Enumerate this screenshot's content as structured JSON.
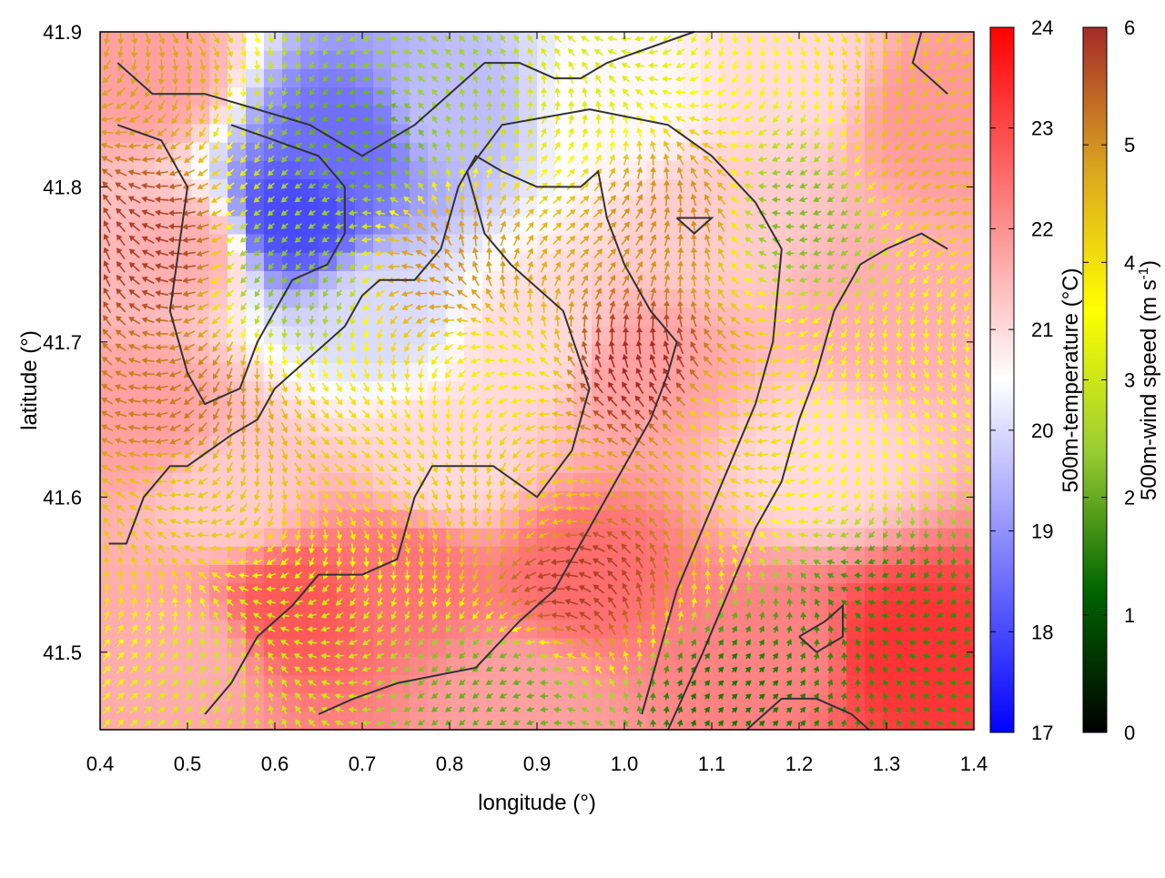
{
  "chart_data": {
    "type": "heatmap",
    "xlabel": "longitude (°)",
    "ylabel": "latitude (°)",
    "xlim": [
      0.4,
      1.4
    ],
    "ylim": [
      41.45,
      41.9
    ],
    "xticks": [
      "0.4",
      "0.5",
      "0.6",
      "0.7",
      "0.8",
      "0.9",
      "1.0",
      "1.1",
      "1.2",
      "1.3",
      "1.4"
    ],
    "yticks": [
      "41.5",
      "41.6",
      "41.7",
      "41.8",
      "41.9"
    ],
    "temperature_colorbar": {
      "label": "500m-temperature (°C)",
      "range": [
        17,
        24
      ],
      "ticks": [
        "17",
        "18",
        "19",
        "20",
        "21",
        "22",
        "23",
        "24"
      ],
      "colors": [
        "#0000ff",
        "#ffffff",
        "#ff0000"
      ]
    },
    "wind_colorbar": {
      "label_main": "500m-wind speed (m s",
      "label_exp": "-1",
      "label_close": ")",
      "range": [
        0,
        6
      ],
      "ticks": [
        "0",
        "1",
        "2",
        "3",
        "4",
        "5",
        "6"
      ],
      "colors": [
        "#000000",
        "#006400",
        "#9acd32",
        "#ffff00",
        "#daa520",
        "#a52a2a"
      ]
    },
    "temperature_field_estimate": [
      {
        "lon": 0.68,
        "lat": 41.83,
        "t": 18.5
      },
      {
        "lon": 0.62,
        "lat": 41.78,
        "t": 18.0
      },
      {
        "lon": 0.8,
        "lat": 41.85,
        "t": 19.6
      },
      {
        "lon": 0.72,
        "lat": 41.72,
        "t": 20.0
      },
      {
        "lon": 0.5,
        "lat": 41.76,
        "t": 21.6
      },
      {
        "lon": 0.45,
        "lat": 41.65,
        "t": 21.8
      },
      {
        "lon": 0.55,
        "lat": 41.6,
        "t": 21.2
      },
      {
        "lon": 0.62,
        "lat": 41.53,
        "t": 22.8
      },
      {
        "lon": 0.75,
        "lat": 41.55,
        "t": 22.4
      },
      {
        "lon": 0.88,
        "lat": 41.47,
        "t": 21.8
      },
      {
        "lon": 0.95,
        "lat": 41.55,
        "t": 22.5
      },
      {
        "lon": 1.02,
        "lat": 41.68,
        "t": 21.8
      },
      {
        "lon": 0.9,
        "lat": 41.7,
        "t": 21.0
      },
      {
        "lon": 1.1,
        "lat": 41.78,
        "t": 21.2
      },
      {
        "lon": 1.18,
        "lat": 41.5,
        "t": 22.2
      },
      {
        "lon": 1.32,
        "lat": 41.5,
        "t": 23.3
      },
      {
        "lon": 1.3,
        "lat": 41.72,
        "t": 21.6
      },
      {
        "lon": 1.35,
        "lat": 41.85,
        "t": 21.9
      },
      {
        "lon": 1.2,
        "lat": 41.87,
        "t": 21.0
      },
      {
        "lon": 1.0,
        "lat": 41.85,
        "t": 20.6
      },
      {
        "lon": 0.45,
        "lat": 41.87,
        "t": 21.8
      },
      {
        "lon": 0.5,
        "lat": 41.5,
        "t": 21.6
      },
      {
        "lon": 0.8,
        "lat": 41.62,
        "t": 21.0
      },
      {
        "lon": 1.22,
        "lat": 41.62,
        "t": 21.0
      }
    ],
    "wind_speed_estimate": [
      {
        "lon": 0.7,
        "lat": 41.83,
        "s": 2.0
      },
      {
        "lon": 0.62,
        "lat": 41.75,
        "s": 2.3
      },
      {
        "lon": 0.8,
        "lat": 41.88,
        "s": 2.5
      },
      {
        "lon": 0.45,
        "lat": 41.76,
        "s": 5.8
      },
      {
        "lon": 0.48,
        "lat": 41.66,
        "s": 5.2
      },
      {
        "lon": 0.5,
        "lat": 41.6,
        "s": 4.3
      },
      {
        "lon": 0.6,
        "lat": 41.5,
        "s": 3.0
      },
      {
        "lon": 0.8,
        "lat": 41.75,
        "s": 4.9
      },
      {
        "lon": 0.85,
        "lat": 41.68,
        "s": 3.8
      },
      {
        "lon": 0.9,
        "lat": 41.6,
        "s": 4.2
      },
      {
        "lon": 0.95,
        "lat": 41.55,
        "s": 5.8
      },
      {
        "lon": 1.02,
        "lat": 41.68,
        "s": 6.0
      },
      {
        "lon": 1.06,
        "lat": 41.78,
        "s": 5.0
      },
      {
        "lon": 1.12,
        "lat": 41.65,
        "s": 4.1
      },
      {
        "lon": 1.2,
        "lat": 41.78,
        "s": 2.2
      },
      {
        "lon": 1.25,
        "lat": 41.65,
        "s": 3.6
      },
      {
        "lon": 1.3,
        "lat": 41.52,
        "s": 1.6
      },
      {
        "lon": 1.12,
        "lat": 41.47,
        "s": 1.4
      },
      {
        "lon": 0.85,
        "lat": 41.47,
        "s": 2.0
      },
      {
        "lon": 1.35,
        "lat": 41.82,
        "s": 4.5
      },
      {
        "lon": 0.95,
        "lat": 41.87,
        "s": 3.2
      },
      {
        "lon": 0.42,
        "lat": 41.88,
        "s": 4.8
      }
    ],
    "wind_direction_note_free": true,
    "contours": [
      [
        [
          0.41,
          41.57
        ],
        [
          0.43,
          41.57
        ],
        [
          0.45,
          41.6
        ],
        [
          0.48,
          41.62
        ],
        [
          0.5,
          41.62
        ],
        [
          0.55,
          41.64
        ],
        [
          0.58,
          41.65
        ],
        [
          0.6,
          41.67
        ],
        [
          0.64,
          41.69
        ],
        [
          0.68,
          41.71
        ],
        [
          0.7,
          41.73
        ],
        [
          0.72,
          41.74
        ],
        [
          0.76,
          41.74
        ],
        [
          0.79,
          41.76
        ],
        [
          0.81,
          41.8
        ],
        [
          0.83,
          41.82
        ],
        [
          0.86,
          41.81
        ],
        [
          0.9,
          41.8
        ],
        [
          0.92,
          41.8
        ],
        [
          0.95,
          41.8
        ],
        [
          0.97,
          41.81
        ],
        [
          0.98,
          41.78
        ],
        [
          1.0,
          41.75
        ],
        [
          1.03,
          41.72
        ],
        [
          1.06,
          41.7
        ],
        [
          1.05,
          41.68
        ],
        [
          1.03,
          41.65
        ],
        [
          1.01,
          41.63
        ],
        [
          0.98,
          41.6
        ],
        [
          0.95,
          41.57
        ],
        [
          0.92,
          41.54
        ],
        [
          0.88,
          41.52
        ],
        [
          0.83,
          41.49
        ],
        [
          0.74,
          41.48
        ],
        [
          0.69,
          41.47
        ],
        [
          0.65,
          41.46
        ]
      ],
      [
        [
          0.52,
          41.46
        ],
        [
          0.55,
          41.48
        ],
        [
          0.58,
          41.51
        ],
        [
          0.62,
          41.53
        ],
        [
          0.65,
          41.55
        ],
        [
          0.7,
          41.55
        ],
        [
          0.74,
          41.56
        ],
        [
          0.76,
          41.6
        ],
        [
          0.78,
          41.62
        ],
        [
          0.85,
          41.62
        ],
        [
          0.9,
          41.6
        ],
        [
          0.94,
          41.63
        ],
        [
          0.96,
          41.67
        ],
        [
          0.93,
          41.72
        ],
        [
          0.87,
          41.75
        ],
        [
          0.84,
          41.77
        ],
        [
          0.82,
          41.81
        ],
        [
          0.86,
          41.84
        ],
        [
          0.96,
          41.85
        ],
        [
          1.05,
          41.84
        ],
        [
          1.1,
          41.82
        ],
        [
          1.15,
          41.79
        ],
        [
          1.18,
          41.76
        ],
        [
          1.17,
          41.7
        ],
        [
          1.15,
          41.66
        ],
        [
          1.12,
          41.62
        ],
        [
          1.09,
          41.58
        ],
        [
          1.06,
          41.54
        ],
        [
          1.04,
          41.5
        ],
        [
          1.02,
          41.46
        ]
      ],
      [
        [
          1.05,
          41.45
        ],
        [
          1.09,
          41.5
        ],
        [
          1.12,
          41.54
        ],
        [
          1.15,
          41.58
        ],
        [
          1.18,
          41.61
        ],
        [
          1.2,
          41.65
        ],
        [
          1.22,
          41.68
        ],
        [
          1.24,
          41.72
        ],
        [
          1.27,
          41.75
        ],
        [
          1.3,
          41.76
        ],
        [
          1.34,
          41.77
        ],
        [
          1.37,
          41.76
        ]
      ],
      [
        [
          1.14,
          41.45
        ],
        [
          1.18,
          41.47
        ],
        [
          1.22,
          41.47
        ],
        [
          1.26,
          41.46
        ],
        [
          1.28,
          41.45
        ]
      ],
      [
        [
          1.2,
          41.51
        ],
        [
          1.23,
          41.52
        ],
        [
          1.25,
          41.53
        ],
        [
          1.25,
          41.51
        ],
        [
          1.22,
          41.5
        ],
        [
          1.2,
          41.51
        ]
      ],
      [
        [
          0.42,
          41.88
        ],
        [
          0.46,
          41.86
        ],
        [
          0.52,
          41.86
        ],
        [
          0.58,
          41.85
        ],
        [
          0.64,
          41.84
        ],
        [
          0.7,
          41.82
        ],
        [
          0.76,
          41.84
        ],
        [
          0.8,
          41.86
        ],
        [
          0.84,
          41.88
        ],
        [
          0.88,
          41.88
        ],
        [
          0.92,
          41.87
        ],
        [
          0.95,
          41.87
        ],
        [
          0.98,
          41.88
        ],
        [
          1.03,
          41.89
        ],
        [
          1.08,
          41.9
        ]
      ],
      [
        [
          0.42,
          41.84
        ],
        [
          0.47,
          41.83
        ],
        [
          0.5,
          41.8
        ],
        [
          0.49,
          41.76
        ],
        [
          0.48,
          41.72
        ],
        [
          0.5,
          41.68
        ],
        [
          0.52,
          41.66
        ],
        [
          0.56,
          41.67
        ],
        [
          0.58,
          41.7
        ],
        [
          0.6,
          41.72
        ],
        [
          0.62,
          41.74
        ],
        [
          0.66,
          41.75
        ],
        [
          0.68,
          41.77
        ],
        [
          0.68,
          41.8
        ],
        [
          0.65,
          41.82
        ],
        [
          0.6,
          41.83
        ],
        [
          0.55,
          41.84
        ]
      ],
      [
        [
          1.06,
          41.78
        ],
        [
          1.08,
          41.77
        ],
        [
          1.1,
          41.78
        ],
        [
          1.08,
          41.78
        ],
        [
          1.06,
          41.78
        ]
      ],
      [
        [
          1.34,
          41.9
        ],
        [
          1.33,
          41.88
        ],
        [
          1.35,
          41.87
        ],
        [
          1.37,
          41.86
        ]
      ]
    ]
  }
}
